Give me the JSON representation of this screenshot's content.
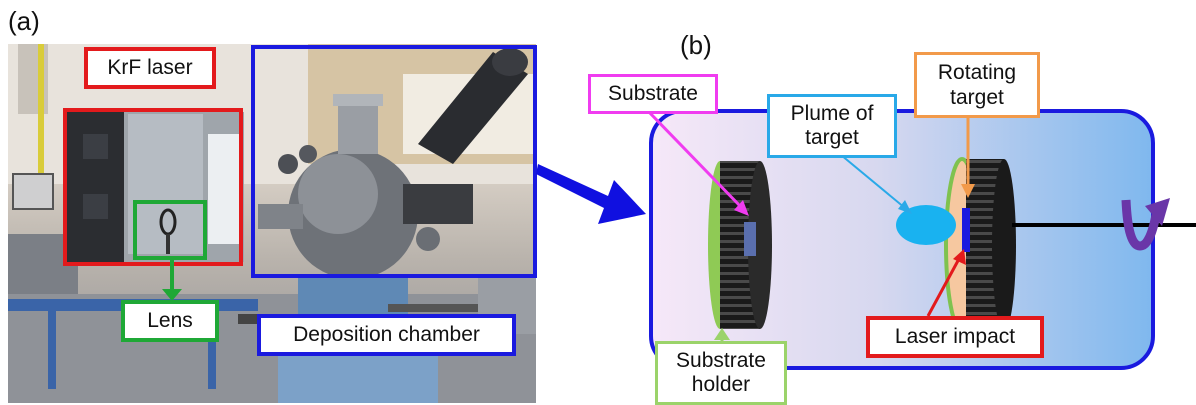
{
  "panel_a": {
    "letter": "(a)",
    "labels": {
      "krf_laser": "KrF laser",
      "lens": "Lens",
      "deposition_chamber": "Deposition chamber"
    }
  },
  "panel_b": {
    "letter": "(b)",
    "labels": {
      "substrate": "Substrate",
      "plume_line1": "Plume of",
      "plume_line2": "target",
      "rotating_line1": "Rotating",
      "rotating_line2": "target",
      "laser_impact": "Laser impact",
      "holder_line1": "Substrate",
      "holder_line2": "holder"
    }
  },
  "colors": {
    "red": "#e31a1c",
    "green": "#1fa836",
    "blue": "#1a1adf",
    "magenta": "#f03cf0",
    "cyan": "#29a9e8",
    "orange": "#f29a4a",
    "light_green": "#9bd36a",
    "arrow_blue": "#1010e0",
    "rotation_arrow": "#7040b0"
  },
  "icons": [
    "rotation-arrow-icon",
    "transition-arrow-icon"
  ]
}
